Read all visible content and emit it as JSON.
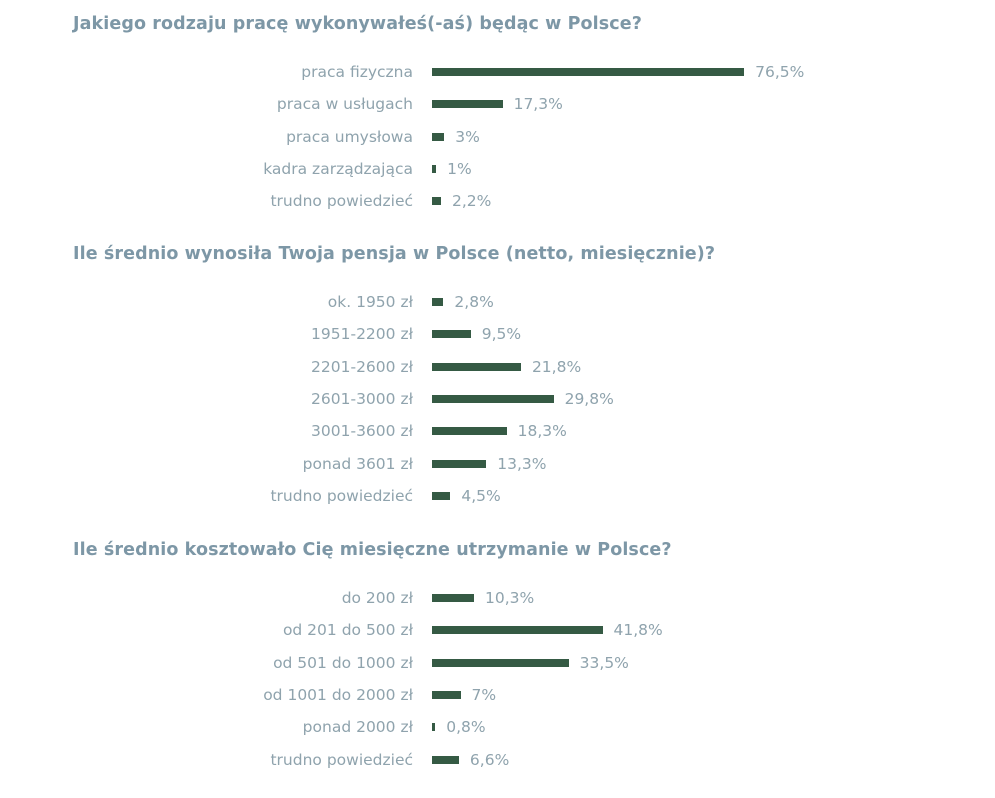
{
  "chart_data": [
    {
      "type": "bar",
      "orientation": "horizontal",
      "title": "Jakiego rodzaju pracę wykonywałeś(-aś) będąc w Polsce?",
      "categories": [
        "praca fizyczna",
        "praca w usługach",
        "praca umysłowa",
        "kadra zarządzająca",
        "trudno powiedzieć"
      ],
      "values": [
        76.5,
        17.3,
        3,
        1,
        2.2
      ],
      "value_labels": [
        "76,5%",
        "17,3%",
        "3%",
        "1%",
        "2,2%"
      ],
      "unit": "%",
      "bar_color": "#355a44"
    },
    {
      "type": "bar",
      "orientation": "horizontal",
      "title": "Ile średnio wynosiła Twoja pensja w Polsce (netto, miesięcznie)?",
      "categories": [
        "ok. 1950 zł",
        "1951-2200 zł",
        "2201-2600 zł",
        "2601-3000 zł",
        "3001-3600 zł",
        "ponad 3601 zł",
        "trudno powiedzieć"
      ],
      "values": [
        2.8,
        9.5,
        21.8,
        29.8,
        18.3,
        13.3,
        4.5
      ],
      "value_labels": [
        "2,8%",
        "9,5%",
        "21,8%",
        "29,8%",
        "18,3%",
        "13,3%",
        "4,5%"
      ],
      "unit": "%",
      "bar_color": "#355a44"
    },
    {
      "type": "bar",
      "orientation": "horizontal",
      "title": "Ile średnio kosztowało Cię miesięczne utrzymanie w Polsce?",
      "categories": [
        "do 200 zł",
        "od 201 do 500 zł",
        "od 501 do 1000 zł",
        "od 1001 do 2000 zł",
        "ponad 2000 zł",
        "trudno powiedzieć"
      ],
      "values": [
        10.3,
        41.8,
        33.5,
        7,
        0.8,
        6.6
      ],
      "value_labels": [
        "10,3%",
        "41,8%",
        "33,5%",
        "7%",
        "0,8%",
        "6,6%"
      ],
      "unit": "%",
      "bar_color": "#355a44"
    }
  ]
}
